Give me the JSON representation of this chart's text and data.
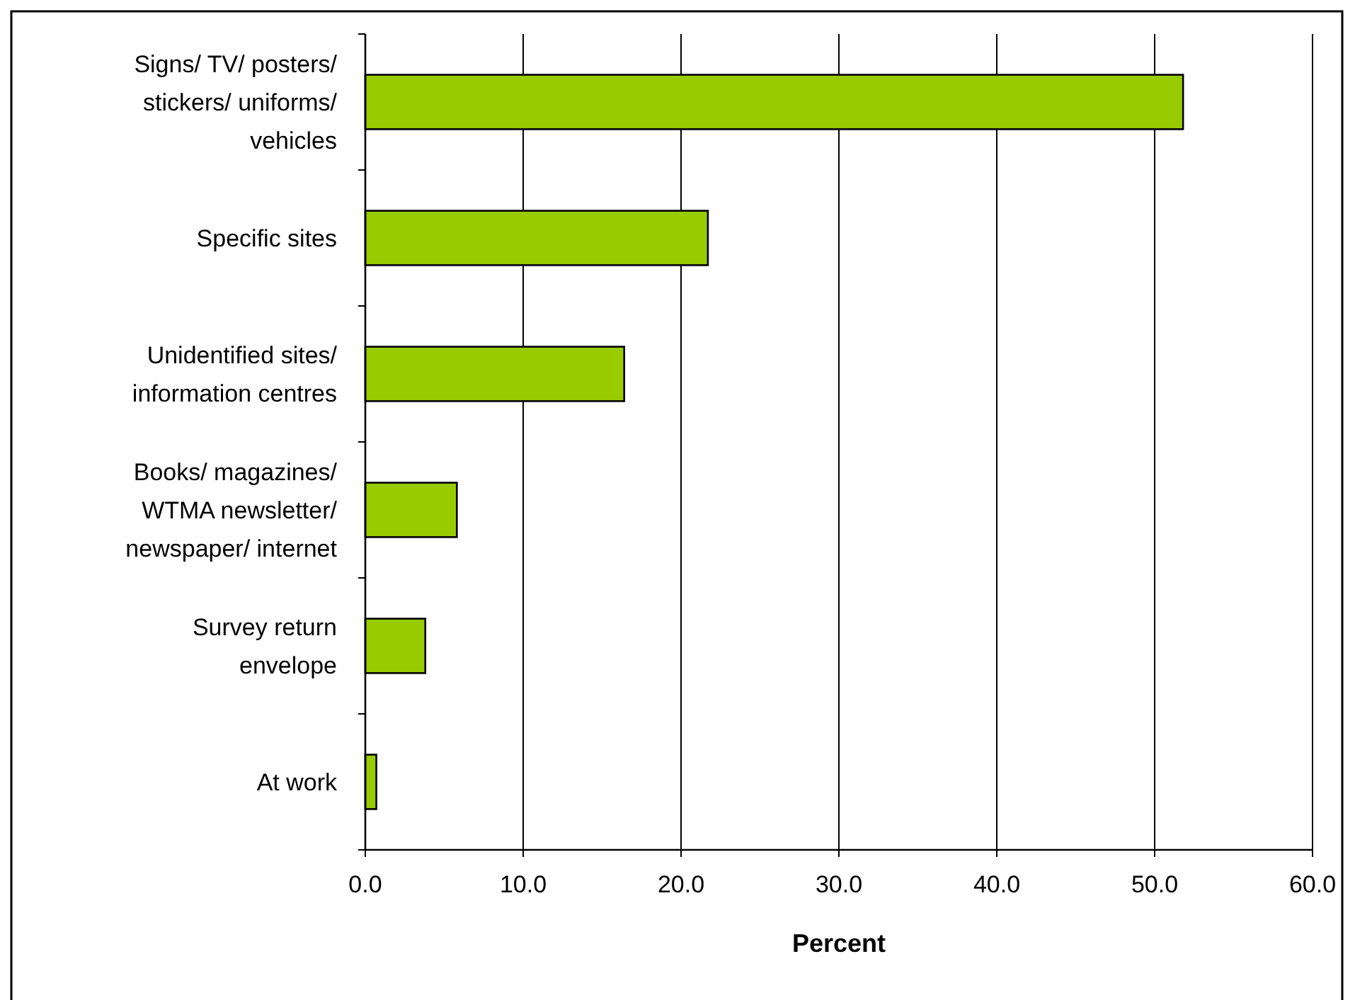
{
  "chart_data": {
    "type": "bar",
    "orientation": "horizontal",
    "xlabel": "Percent",
    "categories": [
      "Signs/ TV/ posters/\nstickers/ uniforms/\nvehicles",
      "Specific sites",
      "Unidentified sites/\ninformation centres",
      "Books/ magazines/\nWTMA newsletter/\nnewspaper/ internet",
      "Survey return\nenvelope",
      "At work"
    ],
    "values": [
      51.8,
      21.7,
      16.4,
      5.8,
      3.8,
      0.7
    ],
    "color": "#99cc00",
    "xlim": [
      0,
      60
    ],
    "xticks": [
      {
        "value": 0,
        "label": "0.0"
      },
      {
        "value": 10,
        "label": "10.0"
      },
      {
        "value": 20,
        "label": "20.0"
      },
      {
        "value": 30,
        "label": "30.0"
      },
      {
        "value": 40,
        "label": "40.0"
      },
      {
        "value": 50,
        "label": "50.0"
      },
      {
        "value": 60,
        "label": "60.0"
      }
    ],
    "grid": "x"
  }
}
